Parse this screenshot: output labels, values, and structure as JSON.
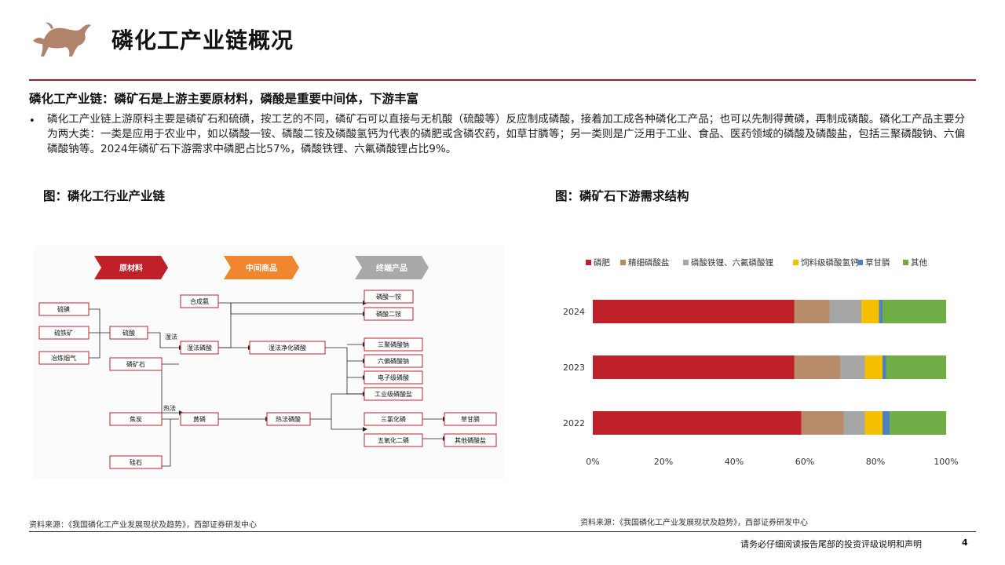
{
  "header": {
    "title": "磷化工产业链概况",
    "logo_icon": "bull-logo-icon"
  },
  "headline": "磷化工产业链：磷矿石是上游主要原材料，磷酸是重要中间体，下游丰富",
  "bullet": {
    "marker": "•",
    "text": "磷化工产业链上游原料主要是磷矿石和硫磺，按工艺的不同，磷矿石可以直接与无机酸（硫酸等）反应制成磷酸，接着加工成各种磷化工产品；也可以先制得黄磷，再制成磷酸。磷化工产品主要分为两大类：一类是应用于农业中，如以磷酸一铵、磷酸二铵及磷酸氢钙为代表的磷肥或含磷农药，如草甘膦等；另一类则是广泛用于工业、食品、医药领域的磷酸及磷酸盐，包括三聚磷酸钠、六偏磷酸钠等。2024年磷矿石下游需求中磷肥占比57%，磷酸铁锂、六氟磷酸锂占比9%。"
  },
  "figure_left": {
    "title": "图：磷化工行业产业链",
    "stages": [
      "原材料",
      "中间商品",
      "终端产品"
    ],
    "stage_colors": [
      "#c0202a",
      "#f0862d",
      "#a9a9a9"
    ],
    "nodes": {
      "sulfur": "硫磺",
      "pyrite": "硫铁矿",
      "smelter_gas": "冶炼烟气",
      "sulfuric_acid": "硫酸",
      "phosphate_rock": "磷矿石",
      "coke": "焦炭",
      "silica": "硅石",
      "ammonia": "合成氨",
      "wet_acid": "湿法磷酸",
      "wet_purified": "湿法净化磷酸",
      "yellow_p": "黄磷",
      "thermal_acid": "热法磷酸",
      "map": "磷酸一铵",
      "dap": "磷酸二铵",
      "stpp": "三聚磷酸钠",
      "shmp": "六偏磷酸钠",
      "electronic": "电子级磷酸",
      "industrial": "工业级磷酸盐",
      "pcl3": "三氯化磷",
      "p2s5": "五氧化二磷",
      "glyphosate": "草甘膦",
      "other_salts": "其他磷酸盐"
    },
    "process_labels": {
      "wet": "湿法",
      "thermal": "热法"
    }
  },
  "figure_right": {
    "title": "图：磷矿石下游需求结构"
  },
  "chart_data": {
    "type": "bar",
    "orientation": "horizontal",
    "stacked": true,
    "categories": [
      "2024",
      "2023",
      "2022"
    ],
    "series": [
      {
        "name": "磷肥",
        "color": "#c0202a",
        "values": [
          57,
          57,
          59
        ]
      },
      {
        "name": "精细磷酸盐",
        "color": "#b88b6a",
        "values": [
          10,
          13,
          12
        ]
      },
      {
        "name": "磷酸铁锂、六氟磷酸锂",
        "color": "#a6a6a6",
        "values": [
          9,
          7,
          6
        ]
      },
      {
        "name": "饲料级磷酸氢钙",
        "color": "#f5c000",
        "values": [
          5,
          5,
          5
        ]
      },
      {
        "name": "草甘膦",
        "color": "#4f81bd",
        "values": [
          1,
          1,
          2
        ]
      },
      {
        "name": "其他",
        "color": "#70ad47",
        "values": [
          18,
          17,
          16
        ]
      }
    ],
    "xticks": [
      "0%",
      "20%",
      "40%",
      "60%",
      "80%",
      "100%"
    ],
    "xlim": [
      0,
      100
    ],
    "legend_position": "top"
  },
  "sources": {
    "left": "资料来源：《我国磷化工产业发展现状及趋势》，西部证券研发中心",
    "right": "资料来源：《我国磷化工产业发展现状及趋势》，西部证券研发中心"
  },
  "footer": {
    "disclaimer": "请务必仔细阅读报告尾部的投资评级说明和声明",
    "page_number": "4"
  }
}
